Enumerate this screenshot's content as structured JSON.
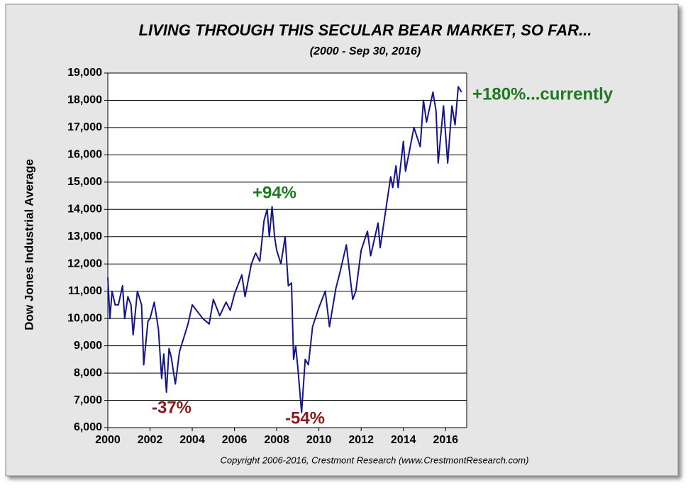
{
  "chart_data": {
    "type": "line",
    "title": "LIVING THROUGH THIS SECULAR BEAR MARKET, SO FAR...",
    "subtitle": "(2000 - Sep 30, 2016)",
    "y_label": "Dow Jones Industrial Average",
    "source": "Copyright 2006-2016, Crestmont Research (www.CrestmontResearch.com)",
    "color": "#14148c",
    "grid": true,
    "annotations": [
      {
        "text": "+94%",
        "color": "#1e7a1e"
      },
      {
        "text": "-37%",
        "color": "#8b1a1a"
      },
      {
        "text": "-54%",
        "color": "#8b1a1a"
      },
      {
        "text": "+180%...currently",
        "color": "#1e7a1e"
      }
    ],
    "xlim": [
      2000,
      2017
    ],
    "xticks": [
      2000,
      2002,
      2004,
      2006,
      2008,
      2010,
      2012,
      2014,
      2016
    ],
    "ylim": [
      6000,
      19000
    ],
    "yticks": [
      {
        "value": 6000,
        "label": "6,000"
      },
      {
        "value": 7000,
        "label": "7,000"
      },
      {
        "value": 8000,
        "label": "8,000"
      },
      {
        "value": 9000,
        "label": "9,000"
      },
      {
        "value": 10000,
        "label": "10,000"
      },
      {
        "value": 11000,
        "label": "11,000"
      },
      {
        "value": 12000,
        "label": "12,000"
      },
      {
        "value": 13000,
        "label": "13,000"
      },
      {
        "value": 14000,
        "label": "14,000"
      },
      {
        "value": 15000,
        "label": "15,000"
      },
      {
        "value": 16000,
        "label": "16,000"
      },
      {
        "value": 17000,
        "label": "17,000"
      },
      {
        "value": 18000,
        "label": "18,000"
      },
      {
        "value": 19000,
        "label": "19,000"
      }
    ],
    "x": [
      2000.0,
      2000.1,
      2000.2,
      2000.35,
      2000.5,
      2000.7,
      2000.8,
      2000.95,
      2001.1,
      2001.2,
      2001.4,
      2001.6,
      2001.7,
      2001.9,
      2002.0,
      2002.2,
      2002.4,
      2002.55,
      2002.65,
      2002.78,
      2002.9,
      2003.0,
      2003.2,
      2003.4,
      2003.6,
      2003.8,
      2004.0,
      2004.2,
      2004.5,
      2004.8,
      2005.0,
      2005.3,
      2005.6,
      2005.8,
      2006.0,
      2006.35,
      2006.5,
      2006.8,
      2007.0,
      2007.2,
      2007.4,
      2007.55,
      2007.65,
      2007.78,
      2007.9,
      2008.0,
      2008.2,
      2008.4,
      2008.55,
      2008.7,
      2008.8,
      2008.9,
      2009.0,
      2009.18,
      2009.35,
      2009.5,
      2009.7,
      2010.0,
      2010.3,
      2010.5,
      2010.8,
      2011.0,
      2011.3,
      2011.6,
      2011.75,
      2012.0,
      2012.3,
      2012.45,
      2012.8,
      2012.9,
      2013.0,
      2013.4,
      2013.5,
      2013.65,
      2013.75,
      2014.0,
      2014.1,
      2014.5,
      2014.8,
      2014.95,
      2015.1,
      2015.4,
      2015.55,
      2015.65,
      2015.9,
      2016.1,
      2016.3,
      2016.45,
      2016.6,
      2016.75
    ],
    "values": [
      11500,
      10000,
      11000,
      10500,
      10500,
      11200,
      10000,
      10800,
      10500,
      9400,
      11000,
      10500,
      8300,
      9900,
      10000,
      10600,
      9600,
      7800,
      8700,
      7300,
      8900,
      8600,
      7600,
      8800,
      9300,
      9800,
      10500,
      10300,
      10000,
      9800,
      10700,
      10100,
      10600,
      10300,
      10900,
      11600,
      10800,
      12000,
      12400,
      12100,
      13600,
      14000,
      13000,
      14100,
      13000,
      12500,
      12000,
      13000,
      11200,
      11300,
      8500,
      9000,
      8200,
      6550,
      8500,
      8300,
      9700,
      10400,
      11000,
      9700,
      11100,
      11700,
      12700,
      10700,
      11000,
      12500,
      13200,
      12300,
      13500,
      12600,
      13100,
      15200,
      14800,
      15600,
      14800,
      16500,
      15400,
      17000,
      16300,
      18000,
      17200,
      18300,
      17600,
      15700,
      17800,
      15700,
      17800,
      17100,
      18500,
      18300
    ]
  }
}
